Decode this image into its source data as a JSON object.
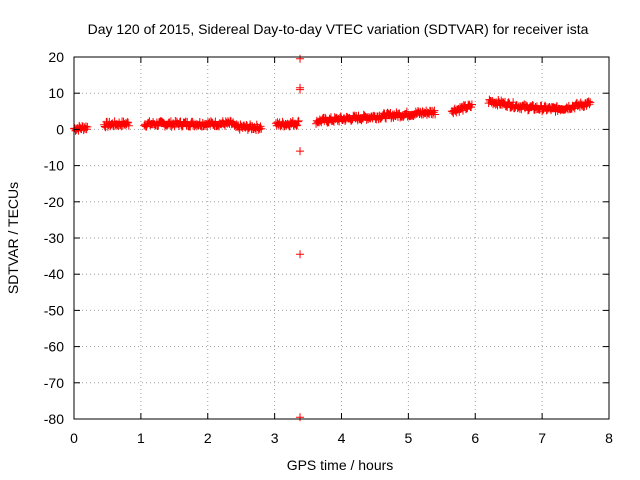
{
  "chart_data": {
    "type": "scatter",
    "title": "Day 120 of 2015, Sidereal Day-to-day VTEC variation (SDTVAR) for receiver ista",
    "xlabel": "GPS time / hours",
    "ylabel": "SDTVAR / TECUs",
    "xlim": [
      0,
      8
    ],
    "ylim": [
      -80,
      20
    ],
    "x_ticks": [
      "0",
      "1",
      "2",
      "3",
      "4",
      "5",
      "6",
      "7",
      "8"
    ],
    "y_ticks": [
      "20",
      "10",
      "0",
      "-10",
      "-20",
      "-30",
      "-40",
      "-50",
      "-60",
      "-70",
      "-80"
    ],
    "grid": true,
    "marker": "+",
    "color": "#ff0000",
    "series": [
      {
        "name": "SDTVAR",
        "segments": [
          {
            "x_start": 0.0,
            "x_end": 0.2,
            "y_start": 0.2,
            "y_end": 0.6
          },
          {
            "x_start": 0.45,
            "x_end": 0.82,
            "y_start": 1.3,
            "y_end": 1.6
          },
          {
            "x_start": 1.05,
            "x_end": 2.38,
            "y_start": 1.5,
            "y_end": 1.6
          },
          {
            "x_start": 2.4,
            "x_end": 2.8,
            "y_start": 0.6,
            "y_end": 0.6
          },
          {
            "x_start": 3.02,
            "x_end": 3.36,
            "y_start": 1.3,
            "y_end": 1.8
          },
          {
            "x_start": 3.62,
            "x_end": 5.4,
            "y_start": 2.3,
            "y_end": 4.8
          },
          {
            "x_start": 5.65,
            "x_end": 5.95,
            "y_start": 5.2,
            "y_end": 6.4
          },
          {
            "x_start": 6.2,
            "x_end": 6.8,
            "y_start": 7.8,
            "y_end": 6.0
          },
          {
            "x_start": 6.8,
            "x_end": 7.2,
            "y_start": 6.0,
            "y_end": 5.6
          },
          {
            "x_start": 7.2,
            "x_end": 7.72,
            "y_start": 5.6,
            "y_end": 7.2
          }
        ],
        "outliers": [
          {
            "x": 3.38,
            "y": 19.5
          },
          {
            "x": 3.38,
            "y": 11.5
          },
          {
            "x": 3.38,
            "y": 11.0
          },
          {
            "x": 3.38,
            "y": -6.0
          },
          {
            "x": 3.38,
            "y": -34.5
          },
          {
            "x": 3.38,
            "y": -79.5
          }
        ]
      }
    ]
  }
}
